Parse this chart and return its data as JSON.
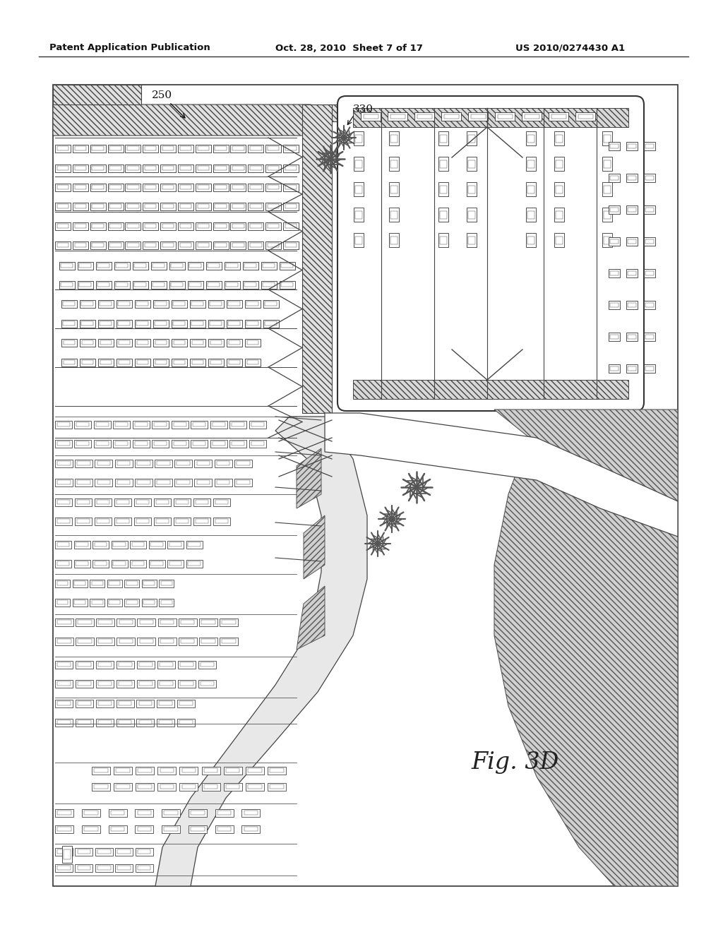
{
  "header_left": "Patent Application Publication",
  "header_mid": "Oct. 28, 2010  Sheet 7 of 17",
  "header_right": "US 2010/0274430 A1",
  "fig_label": "Fig. 3D",
  "label_250": "250",
  "label_330": "330",
  "bg_color": "#ffffff"
}
